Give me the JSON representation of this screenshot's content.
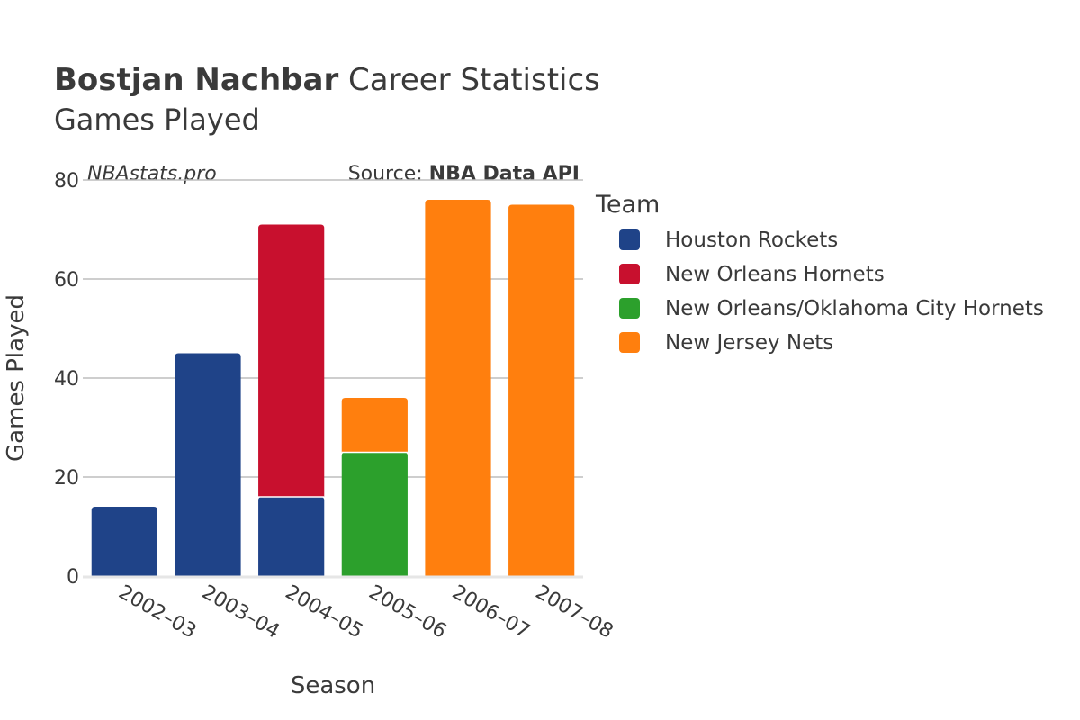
{
  "chart_data": {
    "type": "bar",
    "stacked": true,
    "title_bold": "Bostjan Nachbar",
    "title_rest": " Career Statistics",
    "subtitle": "Games Played",
    "watermark": "NBAstats.pro",
    "source_prefix": "Source: ",
    "source_name": "NBA Data API",
    "xlabel": "Season",
    "ylabel": "Games Played",
    "legend_title": "Team",
    "legend_position": "right",
    "grid": true,
    "ylim": [
      0,
      80
    ],
    "yticks": [
      0,
      20,
      40,
      60,
      80
    ],
    "categories": [
      "2002–03",
      "2003–04",
      "2004–05",
      "2005–06",
      "2006–07",
      "2007–08"
    ],
    "series": [
      {
        "name": "Houston Rockets",
        "color": "#1f4388",
        "values": [
          14,
          45,
          16,
          0,
          0,
          0
        ]
      },
      {
        "name": "New Orleans Hornets",
        "color": "#c8102e",
        "values": [
          0,
          0,
          55,
          0,
          0,
          0
        ]
      },
      {
        "name": "New Orleans/Oklahoma City Hornets",
        "color": "#2ca02c",
        "values": [
          0,
          0,
          0,
          25,
          0,
          0
        ]
      },
      {
        "name": "New Jersey Nets",
        "color": "#ff7f0e",
        "values": [
          0,
          0,
          0,
          11,
          76,
          75
        ]
      }
    ]
  }
}
